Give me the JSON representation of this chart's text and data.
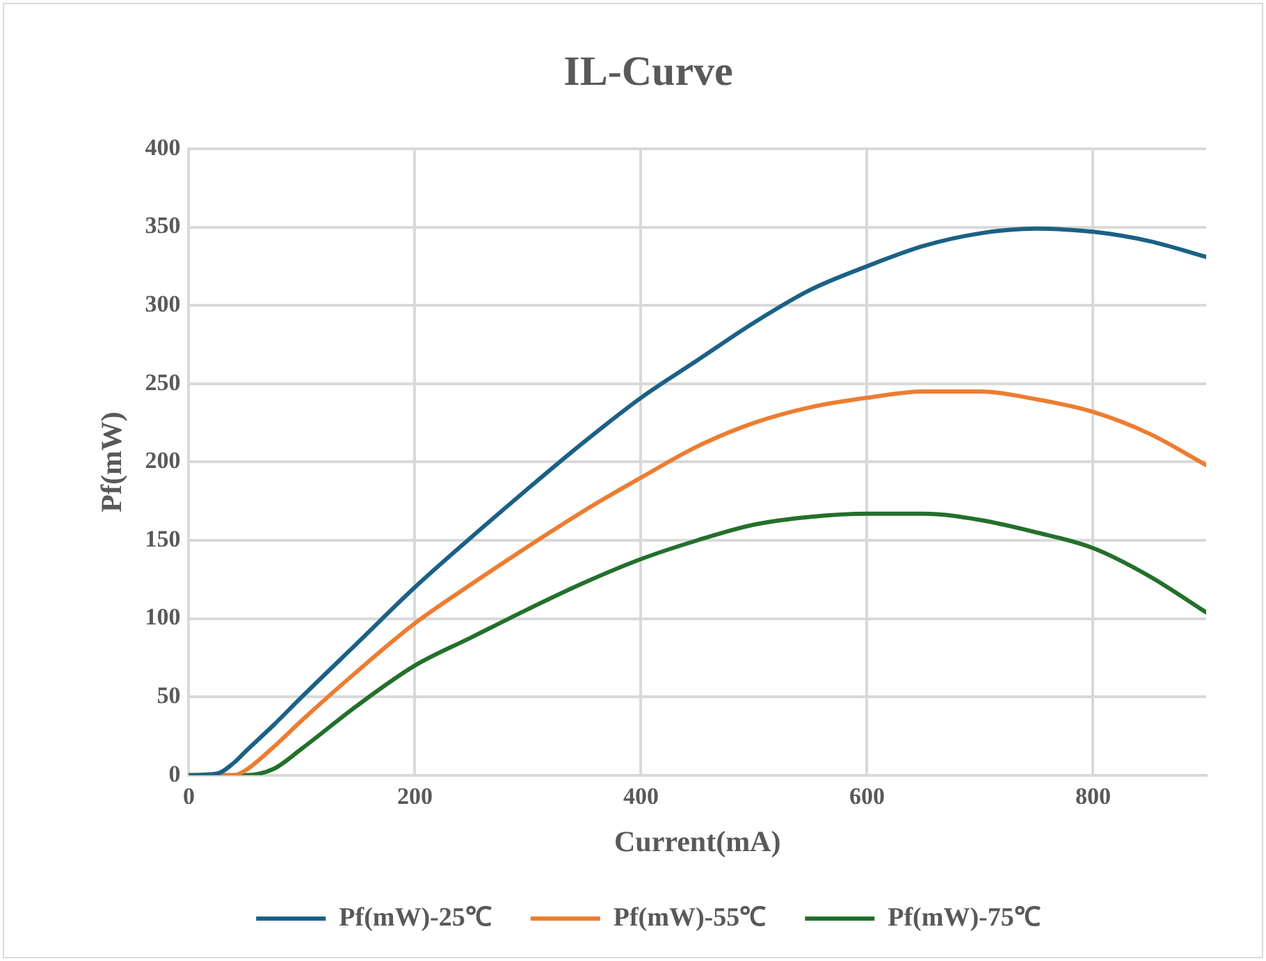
{
  "chart_data": {
    "type": "line",
    "title": "IL-Curve",
    "xlabel": "Current(mA)",
    "ylabel": "Pf(mW)",
    "x": [
      0,
      25,
      40,
      50,
      75,
      100,
      150,
      200,
      250,
      300,
      350,
      400,
      450,
      500,
      550,
      600,
      650,
      700,
      750,
      800,
      850,
      900
    ],
    "series": [
      {
        "name": "Pf(mW)-25℃",
        "color": "#1b6185",
        "values": [
          0,
          1,
          8,
          15,
          32,
          50,
          85,
          120,
          152,
          183,
          213,
          241,
          265,
          289,
          310,
          325,
          338,
          346,
          349,
          347,
          341,
          331
        ]
      },
      {
        "name": "Pf(mW)-55℃",
        "color": "#ed7d31",
        "values": [
          0,
          0,
          0,
          3,
          18,
          35,
          67,
          97,
          122,
          146,
          169,
          190,
          210,
          225,
          235,
          241,
          245,
          245,
          240,
          232,
          218,
          198
        ]
      },
      {
        "name": "Pf(mW)-75℃",
        "color": "#23702b",
        "values": [
          0,
          0,
          0,
          0,
          4,
          17,
          45,
          70,
          88,
          106,
          123,
          138,
          150,
          160,
          165,
          167,
          167,
          163,
          155,
          145,
          127,
          104
        ]
      }
    ],
    "xlim": [
      0,
      900
    ],
    "xticks": [
      0,
      200,
      400,
      600,
      800
    ],
    "ylim": [
      0,
      400
    ],
    "yticks": [
      0,
      50,
      100,
      150,
      200,
      250,
      300,
      350,
      400
    ],
    "grid": true,
    "legend": "bottom",
    "marker": "none",
    "line_style": "solid"
  }
}
